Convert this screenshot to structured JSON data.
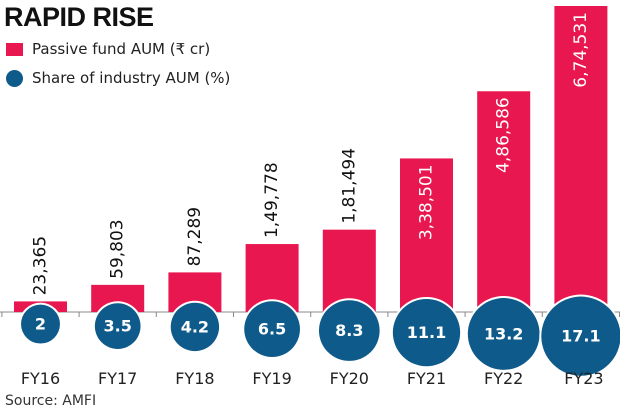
{
  "title": "RAPID RISE",
  "legend": [
    {
      "label": "Passive fund AUM (₹ cr)",
      "shape": "square",
      "color": "#e8174f"
    },
    {
      "label": "Share of industry AUM (%)",
      "shape": "circle",
      "color": "#0e5a8a"
    }
  ],
  "source": "Source: AMFI",
  "chart_data": {
    "type": "bar",
    "title": "RAPID RISE",
    "categories": [
      "FY16",
      "FY17",
      "FY18",
      "FY19",
      "FY20",
      "FY21",
      "FY22",
      "FY23"
    ],
    "series": [
      {
        "name": "Passive fund AUM (₹ cr)",
        "type": "bar",
        "color": "#e8174f",
        "values": [
          23365,
          59803,
          87289,
          149778,
          181494,
          338501,
          486586,
          674531
        ],
        "labels": [
          "23,365",
          "59,803",
          "87,289",
          "1,49,778",
          "1,81,494",
          "3,38,501",
          "4,86,586",
          "6,74,531"
        ]
      },
      {
        "name": "Share of industry AUM (%)",
        "type": "bubble",
        "color": "#0e5a8a",
        "values": [
          2,
          3.5,
          4.2,
          6.5,
          8.3,
          11.1,
          13.2,
          17.1
        ],
        "labels": [
          "2",
          "3.5",
          "4.2",
          "6.5",
          "8.3",
          "11.1",
          "13.2",
          "17.1"
        ]
      }
    ],
    "xlabel": "",
    "ylabel": "",
    "ylim": [
      0,
      680000
    ],
    "grid": false,
    "legend_position": "top-left"
  }
}
